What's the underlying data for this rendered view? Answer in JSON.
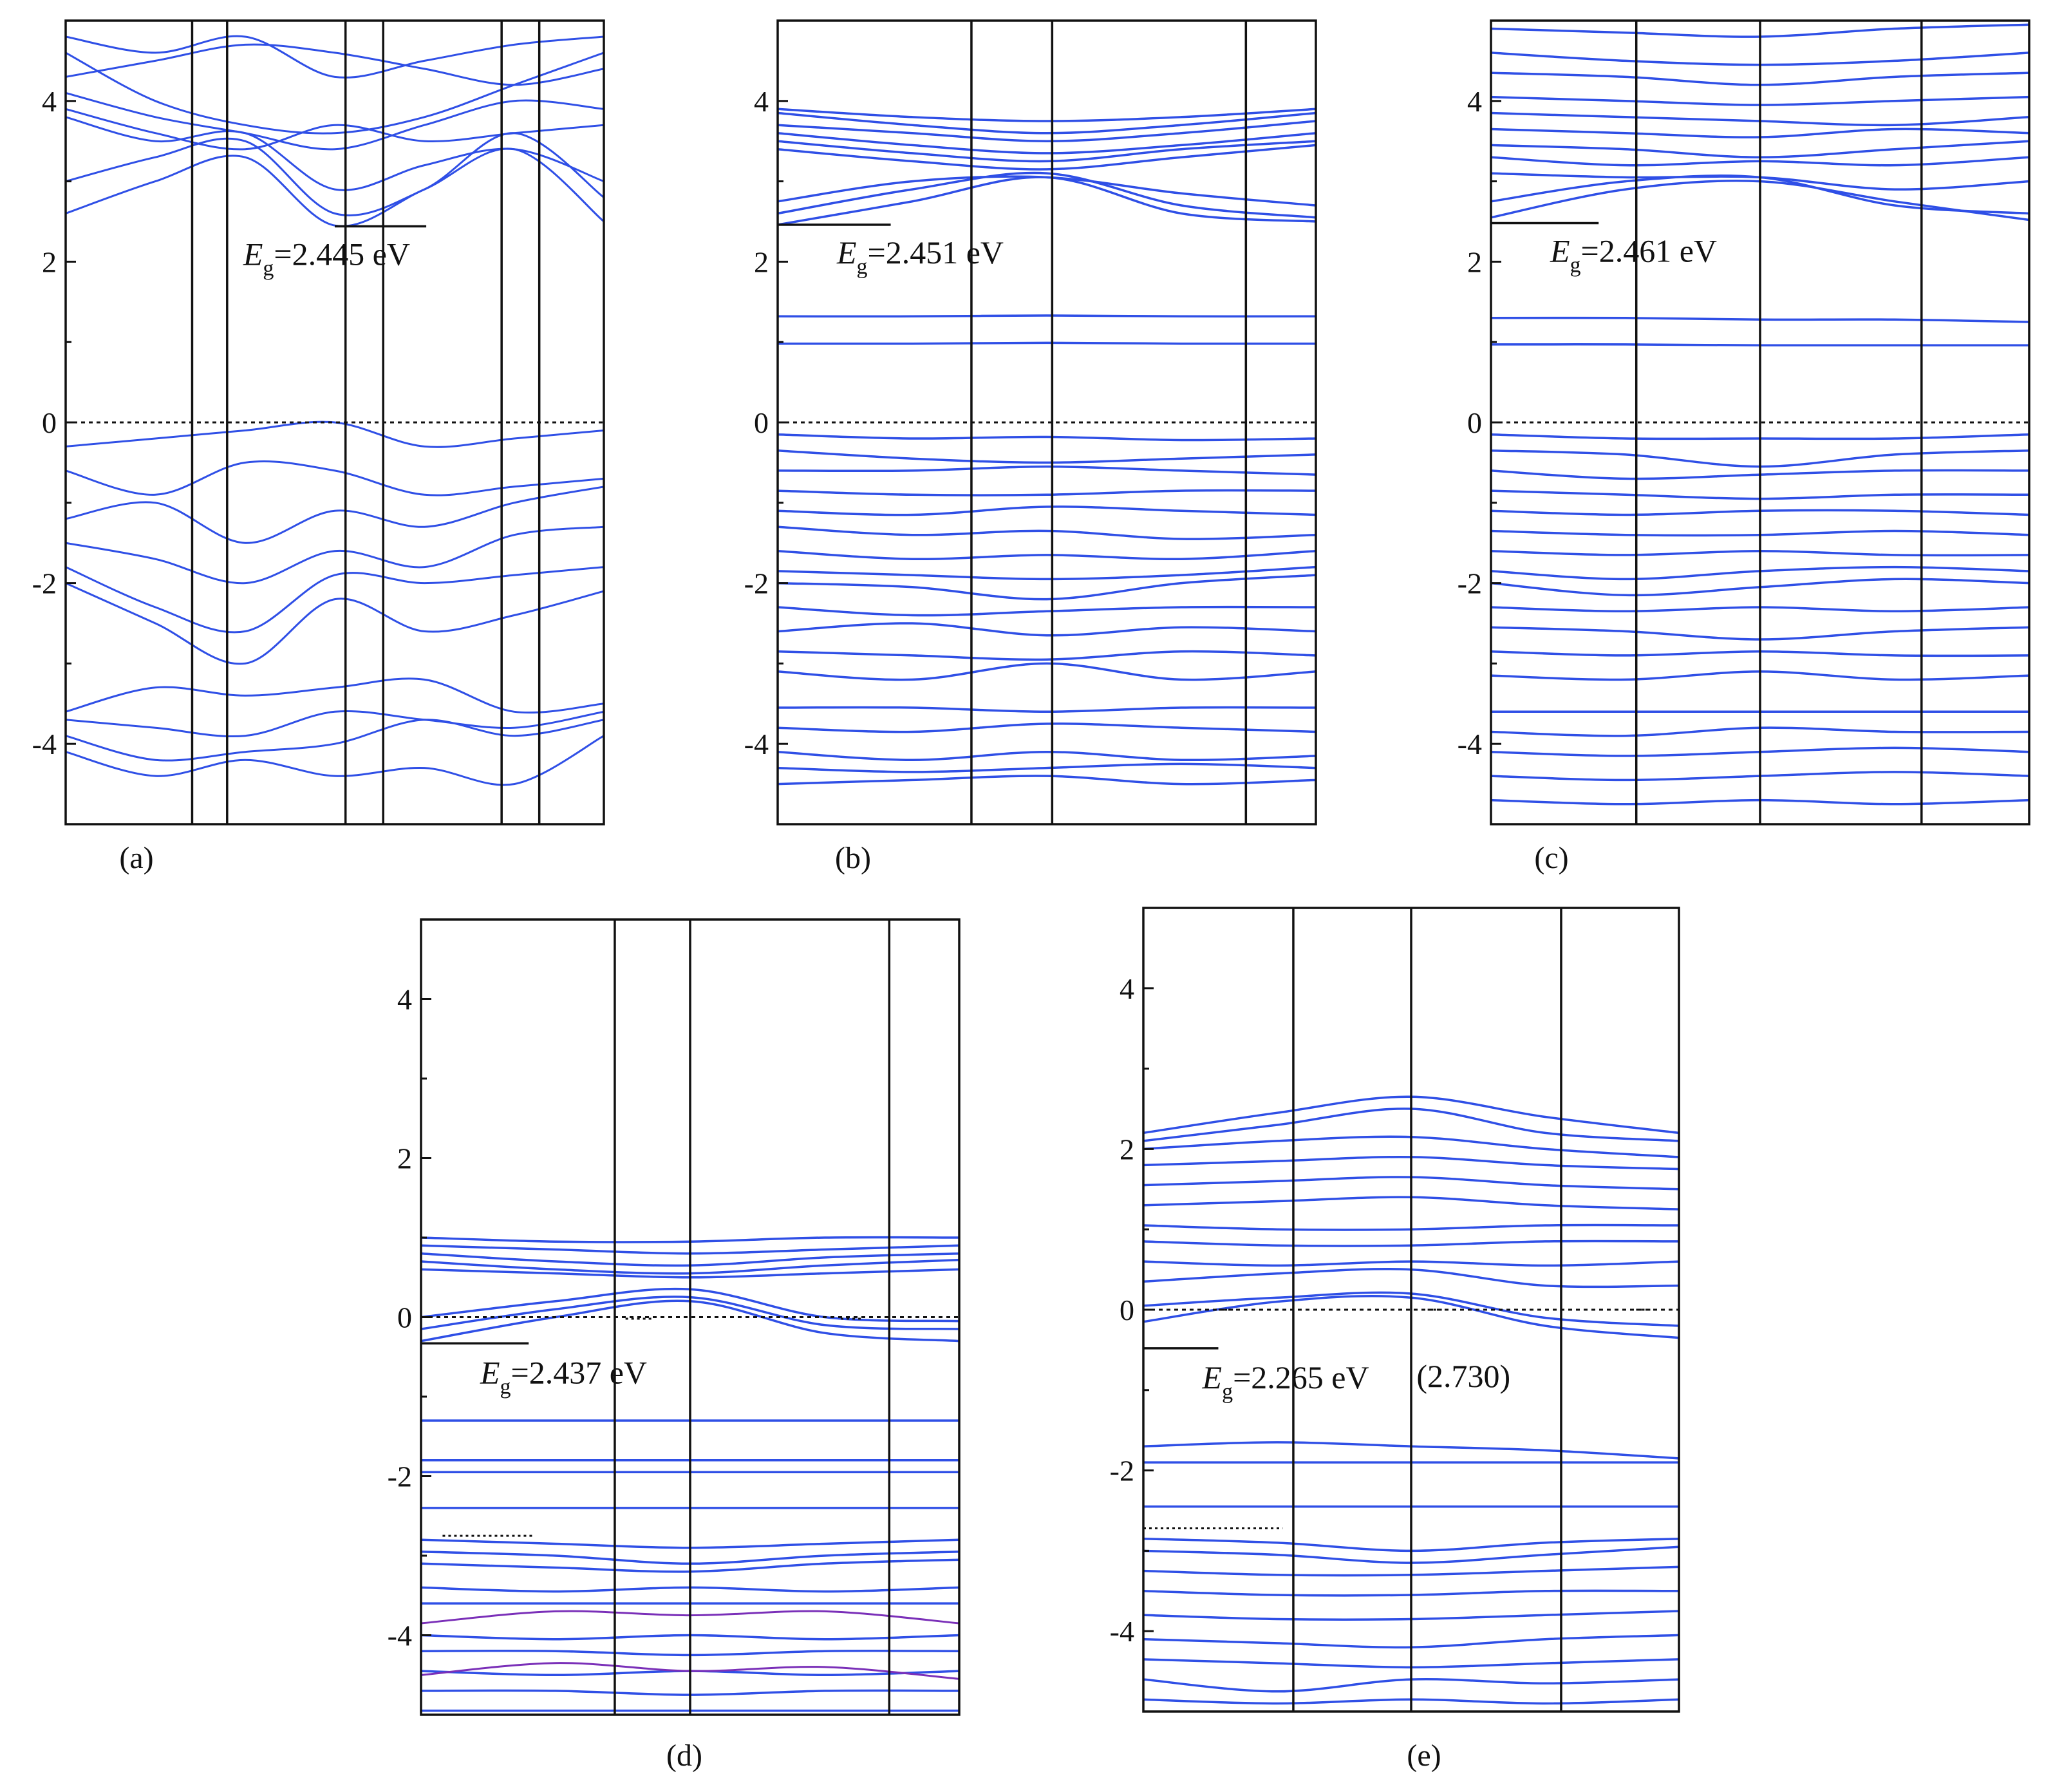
{
  "figure": {
    "background": "#ffffff",
    "band_color": "#2f4fe6",
    "deep_band_color": "#7a2fb8",
    "axis_color": "#111111",
    "fermi_line_style": "dotted"
  },
  "chart_data": [
    {
      "type": "line",
      "caption": "(a)",
      "ylim": [
        -5,
        5
      ],
      "yticks": [
        -4,
        -2,
        0,
        2,
        4
      ],
      "ytick_labels": [
        "-4",
        "-2",
        "0",
        "2",
        "4"
      ],
      "k_path_dividers": [
        0.235,
        0.3,
        0.52,
        0.59,
        0.81,
        0.88
      ],
      "gap_label": {
        "prefix": "E",
        "sub": "g",
        "value": "=2.445 eV"
      },
      "gap_marker": {
        "x0": 0.5,
        "x1": 0.67,
        "y": 2.44
      },
      "fermi_level": 0,
      "dispersive": true,
      "bands": [
        [
          4.6,
          4.0,
          3.7,
          3.6,
          3.8,
          4.2,
          4.6
        ],
        [
          4.1,
          3.8,
          3.6,
          3.4,
          3.7,
          4.0,
          3.9
        ],
        [
          3.9,
          3.6,
          3.4,
          3.7,
          3.5,
          3.6,
          3.7
        ],
        [
          3.8,
          3.5,
          3.6,
          2.9,
          3.2,
          3.4,
          3.0
        ],
        [
          3.0,
          3.3,
          3.5,
          2.6,
          2.9,
          3.6,
          2.8
        ],
        [
          2.6,
          3.0,
          3.3,
          2.45,
          2.9,
          3.4,
          2.5
        ],
        [
          4.8,
          4.6,
          4.8,
          4.3,
          4.5,
          4.7,
          4.8
        ],
        [
          4.3,
          4.5,
          4.7,
          4.6,
          4.4,
          4.2,
          4.4
        ],
        [
          -0.3,
          -0.2,
          -0.1,
          0.0,
          -0.3,
          -0.2,
          -0.1
        ],
        [
          -0.6,
          -0.9,
          -0.5,
          -0.6,
          -0.9,
          -0.8,
          -0.7
        ],
        [
          -1.2,
          -1.0,
          -1.5,
          -1.1,
          -1.3,
          -1.0,
          -0.8
        ],
        [
          -1.5,
          -1.7,
          -2.0,
          -1.6,
          -1.8,
          -1.4,
          -1.3
        ],
        [
          -1.8,
          -2.3,
          -2.6,
          -1.9,
          -2.0,
          -1.9,
          -1.8
        ],
        [
          -2.0,
          -2.5,
          -3.0,
          -2.2,
          -2.6,
          -2.4,
          -2.1
        ],
        [
          -3.6,
          -3.3,
          -3.4,
          -3.3,
          -3.2,
          -3.6,
          -3.5
        ],
        [
          -3.7,
          -3.8,
          -3.9,
          -3.6,
          -3.7,
          -3.8,
          -3.6
        ],
        [
          -3.9,
          -4.2,
          -4.1,
          -4.0,
          -3.7,
          -3.9,
          -3.7
        ],
        [
          -4.1,
          -4.4,
          -4.2,
          -4.4,
          -4.3,
          -4.5,
          -3.9
        ]
      ]
    },
    {
      "type": "line",
      "caption": "(b)",
      "ylim": [
        -5,
        5
      ],
      "yticks": [
        -4,
        -2,
        0,
        2,
        4
      ],
      "ytick_labels": [
        "-4",
        "-2",
        "0",
        "2",
        "4"
      ],
      "k_path_dividers": [
        0.36,
        0.51,
        0.87
      ],
      "gap_label": {
        "prefix": "E",
        "sub": "g",
        "value": "=2.451 eV"
      },
      "gap_marker": {
        "x0": 0.0,
        "x1": 0.21,
        "y": 2.46
      },
      "fermi_level": 0,
      "dispersive": false,
      "bands": [
        [
          3.9,
          3.8,
          3.75,
          3.8,
          3.9
        ],
        [
          3.85,
          3.7,
          3.6,
          3.7,
          3.85
        ],
        [
          3.7,
          3.6,
          3.5,
          3.6,
          3.75
        ],
        [
          3.6,
          3.45,
          3.35,
          3.45,
          3.6
        ],
        [
          3.5,
          3.35,
          3.25,
          3.4,
          3.5
        ],
        [
          3.4,
          3.25,
          3.15,
          3.3,
          3.45
        ],
        [
          2.75,
          3.0,
          3.05,
          2.85,
          2.7
        ],
        [
          2.6,
          2.9,
          3.1,
          2.7,
          2.55
        ],
        [
          2.46,
          2.75,
          3.05,
          2.6,
          2.5
        ],
        [
          1.32,
          1.32,
          1.33,
          1.32,
          1.32
        ],
        [
          0.98,
          0.98,
          0.99,
          0.98,
          0.98
        ],
        [
          -0.15,
          -0.2,
          -0.18,
          -0.22,
          -0.2
        ],
        [
          -0.35,
          -0.45,
          -0.5,
          -0.45,
          -0.4
        ],
        [
          -0.6,
          -0.6,
          -0.55,
          -0.6,
          -0.65
        ],
        [
          -0.85,
          -0.9,
          -0.9,
          -0.85,
          -0.85
        ],
        [
          -1.1,
          -1.15,
          -1.05,
          -1.1,
          -1.15
        ],
        [
          -1.3,
          -1.4,
          -1.35,
          -1.45,
          -1.4
        ],
        [
          -1.6,
          -1.7,
          -1.65,
          -1.7,
          -1.6
        ],
        [
          -1.85,
          -1.9,
          -1.95,
          -1.9,
          -1.8
        ],
        [
          -2.0,
          -2.05,
          -2.2,
          -2.0,
          -1.9
        ],
        [
          -2.3,
          -2.4,
          -2.35,
          -2.3,
          -2.3
        ],
        [
          -2.6,
          -2.5,
          -2.65,
          -2.55,
          -2.6
        ],
        [
          -2.85,
          -2.9,
          -2.95,
          -2.85,
          -2.9
        ],
        [
          -3.1,
          -3.2,
          -3.0,
          -3.2,
          -3.1
        ],
        [
          -3.55,
          -3.55,
          -3.6,
          -3.55,
          -3.55
        ],
        [
          -3.8,
          -3.85,
          -3.75,
          -3.8,
          -3.85
        ],
        [
          -4.1,
          -4.2,
          -4.1,
          -4.2,
          -4.15
        ],
        [
          -4.3,
          -4.35,
          -4.3,
          -4.25,
          -4.3
        ],
        [
          -4.5,
          -4.45,
          -4.4,
          -4.5,
          -4.45
        ]
      ]
    },
    {
      "type": "line",
      "caption": "(c)",
      "ylim": [
        -5,
        5
      ],
      "yticks": [
        -4,
        -2,
        0,
        2,
        4
      ],
      "ytick_labels": [
        "-4",
        "-2",
        "0",
        "2",
        "4"
      ],
      "k_path_dividers": [
        0.27,
        0.5,
        0.8
      ],
      "gap_label": {
        "prefix": "E",
        "sub": "g",
        "value": "=2.461 eV"
      },
      "gap_marker": {
        "x0": 0.0,
        "x1": 0.2,
        "y": 2.48
      },
      "fermi_level": 0,
      "dispersive": false,
      "bands": [
        [
          4.9,
          4.85,
          4.8,
          4.9,
          4.95
        ],
        [
          4.6,
          4.5,
          4.45,
          4.5,
          4.6
        ],
        [
          4.35,
          4.3,
          4.2,
          4.3,
          4.35
        ],
        [
          4.05,
          4.0,
          3.95,
          4.0,
          4.05
        ],
        [
          3.85,
          3.8,
          3.75,
          3.7,
          3.8
        ],
        [
          3.65,
          3.6,
          3.55,
          3.65,
          3.6
        ],
        [
          3.45,
          3.4,
          3.3,
          3.4,
          3.5
        ],
        [
          3.3,
          3.2,
          3.25,
          3.2,
          3.3
        ],
        [
          3.1,
          3.05,
          3.05,
          2.9,
          3.0
        ],
        [
          2.75,
          3.0,
          3.05,
          2.7,
          2.6
        ],
        [
          2.55,
          2.9,
          3.0,
          2.75,
          2.52
        ],
        [
          1.3,
          1.3,
          1.28,
          1.28,
          1.25
        ],
        [
          0.97,
          0.97,
          0.96,
          0.96,
          0.96
        ],
        [
          -0.15,
          -0.2,
          -0.2,
          -0.2,
          -0.15
        ],
        [
          -0.35,
          -0.4,
          -0.55,
          -0.4,
          -0.35
        ],
        [
          -0.6,
          -0.7,
          -0.65,
          -0.6,
          -0.6
        ],
        [
          -0.85,
          -0.9,
          -0.95,
          -0.9,
          -0.9
        ],
        [
          -1.1,
          -1.15,
          -1.1,
          -1.1,
          -1.15
        ],
        [
          -1.35,
          -1.4,
          -1.4,
          -1.35,
          -1.4
        ],
        [
          -1.6,
          -1.65,
          -1.6,
          -1.65,
          -1.65
        ],
        [
          -1.85,
          -1.95,
          -1.85,
          -1.8,
          -1.85
        ],
        [
          -2.0,
          -2.15,
          -2.05,
          -1.95,
          -2.0
        ],
        [
          -2.3,
          -2.35,
          -2.3,
          -2.35,
          -2.3
        ],
        [
          -2.55,
          -2.6,
          -2.7,
          -2.6,
          -2.55
        ],
        [
          -2.85,
          -2.9,
          -2.85,
          -2.9,
          -2.9
        ],
        [
          -3.15,
          -3.2,
          -3.1,
          -3.2,
          -3.15
        ],
        [
          -3.6,
          -3.6,
          -3.6,
          -3.6,
          -3.6
        ],
        [
          -3.85,
          -3.9,
          -3.8,
          -3.85,
          -3.85
        ],
        [
          -4.1,
          -4.15,
          -4.1,
          -4.05,
          -4.1
        ],
        [
          -4.4,
          -4.45,
          -4.4,
          -4.35,
          -4.4
        ],
        [
          -4.7,
          -4.75,
          -4.7,
          -4.75,
          -4.7
        ]
      ]
    },
    {
      "type": "line",
      "caption": "(d)",
      "ylim": [
        -5,
        5
      ],
      "yticks": [
        -4,
        -2,
        0,
        2,
        4
      ],
      "ytick_labels": [
        "-4",
        "-2",
        "0",
        "2",
        "4"
      ],
      "k_path_dividers": [
        0.36,
        0.5,
        0.87
      ],
      "gap_label": {
        "prefix": "E",
        "sub": "g",
        "value": "=2.437 eV"
      },
      "gap_marker": {
        "x0": 0.0,
        "x1": 0.2,
        "y": -0.33
      },
      "fermi_level": 0,
      "dispersive": false,
      "bands": [
        [
          1.0,
          0.95,
          0.95,
          1.0,
          1.0
        ],
        [
          0.9,
          0.85,
          0.8,
          0.85,
          0.9
        ],
        [
          0.8,
          0.7,
          0.65,
          0.75,
          0.8
        ],
        [
          0.7,
          0.6,
          0.55,
          0.65,
          0.72
        ],
        [
          0.6,
          0.55,
          0.5,
          0.55,
          0.6
        ],
        [
          0.0,
          0.2,
          0.35,
          0.0,
          -0.05
        ],
        [
          -0.15,
          0.1,
          0.25,
          -0.1,
          -0.15
        ],
        [
          -0.3,
          0.0,
          0.2,
          -0.2,
          -0.3
        ],
        [
          -1.3,
          -1.3,
          -1.3,
          -1.3,
          -1.3
        ],
        [
          -1.8,
          -1.8,
          -1.8,
          -1.8,
          -1.8
        ],
        [
          -1.95,
          -1.95,
          -1.95,
          -1.95,
          -1.95
        ],
        [
          -2.4,
          -2.4,
          -2.4,
          -2.4,
          -2.4
        ],
        [
          -2.8,
          -2.85,
          -2.9,
          -2.85,
          -2.8
        ],
        [
          -2.95,
          -3.0,
          -3.1,
          -3.0,
          -2.95
        ],
        [
          -3.1,
          -3.15,
          -3.2,
          -3.1,
          -3.05
        ],
        [
          -3.4,
          -3.45,
          -3.4,
          -3.45,
          -3.4
        ],
        [
          -3.6,
          -3.6,
          -3.6,
          -3.6,
          -3.6
        ],
        [
          -4.0,
          -4.05,
          -4.0,
          -4.05,
          -4.0
        ],
        [
          -4.2,
          -4.2,
          -4.25,
          -4.2,
          -4.2
        ],
        [
          -4.45,
          -4.5,
          -4.45,
          -4.5,
          -4.45
        ],
        [
          -4.7,
          -4.7,
          -4.75,
          -4.7,
          -4.7
        ],
        [
          -4.95,
          -4.95,
          -4.95,
          -4.95,
          -4.95
        ]
      ],
      "deep_bands": [
        [
          -3.85,
          -3.7,
          -3.75,
          -3.7,
          -3.85
        ],
        [
          -4.5,
          -4.35,
          -4.45,
          -4.4,
          -4.55
        ]
      ],
      "dotted_markers": [
        {
          "x0": 0.04,
          "x1": 0.21,
          "y": -2.75
        },
        {
          "x0": 0.38,
          "x1": 0.43,
          "y": -0.02
        },
        {
          "x0": 0.78,
          "x1": 0.82,
          "y": -0.02
        }
      ]
    },
    {
      "type": "line",
      "caption": "(e)",
      "ylim": [
        -5,
        5
      ],
      "yticks": [
        -4,
        -2,
        0,
        2,
        4
      ],
      "ytick_labels": [
        "-4",
        "-2",
        "0",
        "2",
        "4"
      ],
      "k_path_dividers": [
        0.28,
        0.5,
        0.78
      ],
      "gap_label": {
        "prefix": "E",
        "sub": "g",
        "value": "=2.265 eV"
      },
      "gap_marker": {
        "x0": 0.0,
        "x1": 0.14,
        "y": -0.48
      },
      "secondary_label": "(2.730)",
      "fermi_level": 0,
      "dispersive": false,
      "bands": [
        [
          2.2,
          2.45,
          2.65,
          2.4,
          2.2
        ],
        [
          2.1,
          2.3,
          2.5,
          2.2,
          2.1
        ],
        [
          2.0,
          2.1,
          2.15,
          2.0,
          1.9
        ],
        [
          1.8,
          1.85,
          1.9,
          1.8,
          1.75
        ],
        [
          1.55,
          1.6,
          1.65,
          1.55,
          1.5
        ],
        [
          1.3,
          1.35,
          1.4,
          1.3,
          1.25
        ],
        [
          1.05,
          1.0,
          1.0,
          1.05,
          1.05
        ],
        [
          0.85,
          0.8,
          0.8,
          0.85,
          0.85
        ],
        [
          0.6,
          0.55,
          0.6,
          0.55,
          0.6
        ],
        [
          0.35,
          0.45,
          0.5,
          0.3,
          0.3
        ],
        [
          0.05,
          0.15,
          0.2,
          -0.1,
          -0.2
        ],
        [
          -0.15,
          0.1,
          0.15,
          -0.2,
          -0.35
        ],
        [
          -1.7,
          -1.65,
          -1.7,
          -1.75,
          -1.85
        ],
        [
          -1.9,
          -1.9,
          -1.9,
          -1.9,
          -1.9
        ],
        [
          -2.45,
          -2.45,
          -2.45,
          -2.45,
          -2.45
        ],
        [
          -2.85,
          -2.9,
          -3.0,
          -2.9,
          -2.85
        ],
        [
          -3.0,
          -3.05,
          -3.15,
          -3.05,
          -2.95
        ],
        [
          -3.25,
          -3.3,
          -3.3,
          -3.25,
          -3.2
        ],
        [
          -3.5,
          -3.55,
          -3.55,
          -3.5,
          -3.5
        ],
        [
          -3.8,
          -3.85,
          -3.85,
          -3.8,
          -3.75
        ],
        [
          -4.1,
          -4.15,
          -4.2,
          -4.1,
          -4.05
        ],
        [
          -4.35,
          -4.4,
          -4.45,
          -4.4,
          -4.35
        ],
        [
          -4.6,
          -4.75,
          -4.6,
          -4.65,
          -4.6
        ],
        [
          -4.85,
          -4.9,
          -4.85,
          -4.9,
          -4.85
        ]
      ],
      "dotted_markers": [
        {
          "x0": 0.0,
          "x1": 0.26,
          "y": -2.72
        },
        {
          "x0": 0.13,
          "x1": 0.17,
          "y": 0.0
        },
        {
          "x0": 0.52,
          "x1": 0.57,
          "y": 0.0
        },
        {
          "x0": 0.92,
          "x1": 0.96,
          "y": 0.0
        }
      ]
    }
  ]
}
